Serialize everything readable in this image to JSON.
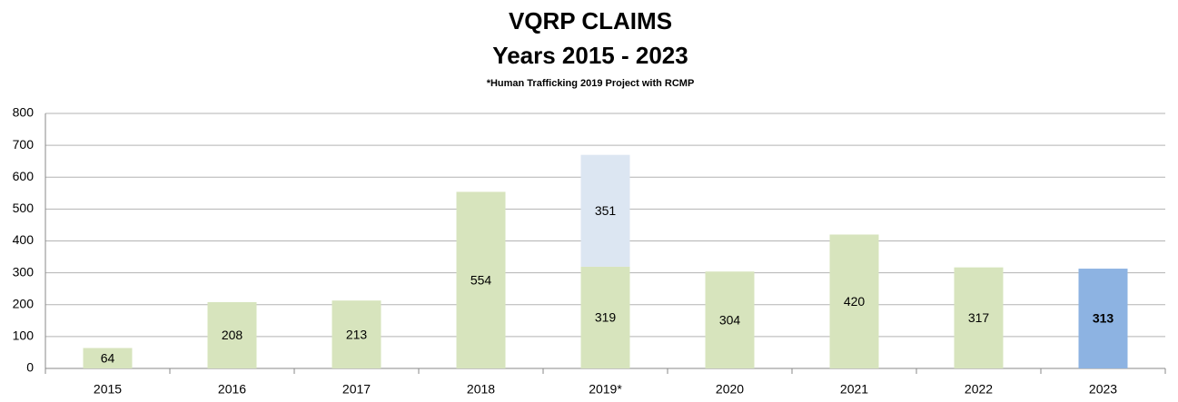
{
  "chart_data": {
    "type": "stacked_bar",
    "title": "VQRP CLAIMS",
    "subtitle": "Years 2015 - 2023",
    "note": "*Human Trafficking 2019 Project with RCMP",
    "categories": [
      "2015",
      "2016",
      "2017",
      "2018",
      "2019*",
      "2020",
      "2021",
      "2022",
      "2023"
    ],
    "series": [
      {
        "color": "#d7e4bd",
        "values": [
          64,
          208,
          213,
          554,
          319,
          304,
          420,
          317,
          313
        ]
      },
      {
        "color": "#dce6f2",
        "values": [
          null,
          null,
          null,
          null,
          351,
          null,
          null,
          null,
          null
        ]
      }
    ],
    "highlight": {
      "index": 8,
      "color": "#8db3e2",
      "bold": true
    },
    "ylim": [
      0,
      800
    ],
    "yticks": [
      0,
      100,
      200,
      300,
      400,
      500,
      600,
      700,
      800
    ],
    "grid": true
  }
}
